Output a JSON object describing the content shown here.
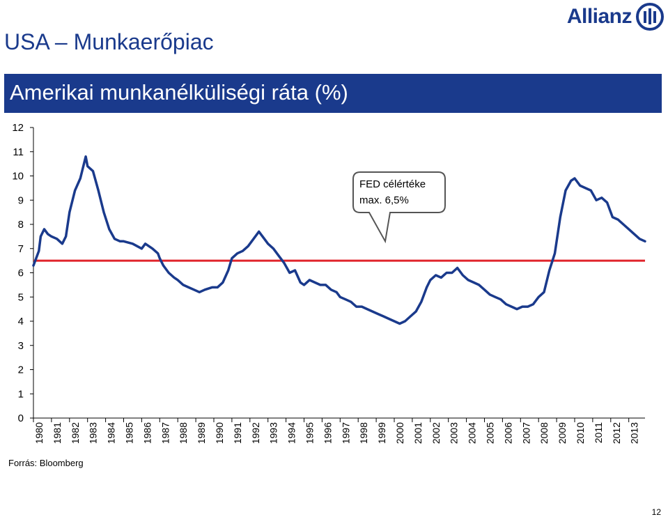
{
  "header": {
    "page_title": "USA – Munkaerőpiac",
    "logo_text": "Allianz",
    "banner_title": "Amerikai munkanélküliségi ráta (%)"
  },
  "footer": {
    "source": "Forrás: Bloomberg",
    "page_number": "12"
  },
  "colors": {
    "brand_blue": "#1a3a8c",
    "series_line": "#1a3a8c",
    "target_line": "#e0242b"
  },
  "chart_data": {
    "type": "line",
    "title": "Amerikai munkanélküliségi ráta (%)",
    "xlabel": "",
    "ylabel": "",
    "ylim": [
      0,
      12
    ],
    "yticks": [
      "0",
      "1",
      "2",
      "3",
      "4",
      "5",
      "6",
      "7",
      "8",
      "9",
      "10",
      "11",
      "12"
    ],
    "xlim": [
      1980,
      2013.9
    ],
    "xticks": [
      "1980",
      "1981",
      "1982",
      "1983",
      "1984",
      "1985",
      "1986",
      "1987",
      "1988",
      "1989",
      "1990",
      "1991",
      "1992",
      "1993",
      "1994",
      "1995",
      "1996",
      "1997",
      "1998",
      "1999",
      "2000",
      "2001",
      "2002",
      "2003",
      "2004",
      "2005",
      "2006",
      "2007",
      "2008",
      "2009",
      "2010",
      "2011",
      "2012",
      "2013"
    ],
    "grid": false,
    "legend": "none",
    "series": [
      {
        "x": [
          1980.0,
          1980.3,
          1980.4,
          1980.6,
          1980.8,
          1981.0,
          1981.3,
          1981.6,
          1981.8,
          1982.0,
          1982.3,
          1982.6,
          1982.9,
          1983.0,
          1983.3,
          1983.6,
          1983.9,
          1984.2,
          1984.5,
          1984.8,
          1985.0,
          1985.5,
          1986.0,
          1986.2,
          1986.6,
          1986.9,
          1987.0,
          1987.2,
          1987.5,
          1987.8,
          1988.0,
          1988.3,
          1988.6,
          1988.9,
          1989.2,
          1989.5,
          1989.9,
          1990.2,
          1990.5,
          1990.8,
          1991.0,
          1991.3,
          1991.6,
          1991.9,
          1992.2,
          1992.5,
          1992.8,
          1993.0,
          1993.3,
          1993.6,
          1993.9,
          1994.2,
          1994.5,
          1994.8,
          1995.0,
          1995.3,
          1995.6,
          1995.9,
          1996.2,
          1996.5,
          1996.8,
          1997.0,
          1997.3,
          1997.6,
          1997.9,
          1998.2,
          1998.5,
          1998.8,
          1999.1,
          1999.4,
          1999.7,
          2000.0,
          2000.3,
          2000.6,
          2000.9,
          2001.2,
          2001.5,
          2001.8,
          2002.0,
          2002.3,
          2002.6,
          2002.9,
          2003.2,
          2003.5,
          2003.8,
          2004.1,
          2004.4,
          2004.7,
          2005.0,
          2005.3,
          2005.6,
          2005.9,
          2006.2,
          2006.5,
          2006.8,
          2007.1,
          2007.4,
          2007.7,
          2008.0,
          2008.3,
          2008.6,
          2008.9,
          2009.2,
          2009.5,
          2009.8,
          2010.0,
          2010.3,
          2010.6,
          2010.9,
          2011.2,
          2011.5,
          2011.8,
          2012.1,
          2012.4,
          2012.7,
          2013.0,
          2013.3,
          2013.6,
          2013.9
        ],
        "values": [
          6.3,
          6.9,
          7.5,
          7.8,
          7.6,
          7.5,
          7.4,
          7.2,
          7.5,
          8.5,
          9.4,
          9.9,
          10.8,
          10.4,
          10.2,
          9.4,
          8.5,
          7.8,
          7.4,
          7.3,
          7.3,
          7.2,
          7.0,
          7.2,
          7.0,
          6.8,
          6.6,
          6.3,
          6.0,
          5.8,
          5.7,
          5.5,
          5.4,
          5.3,
          5.2,
          5.3,
          5.4,
          5.4,
          5.6,
          6.1,
          6.6,
          6.8,
          6.9,
          7.1,
          7.4,
          7.7,
          7.4,
          7.2,
          7.0,
          6.7,
          6.4,
          6.0,
          6.1,
          5.6,
          5.5,
          5.7,
          5.6,
          5.5,
          5.5,
          5.3,
          5.2,
          5.0,
          4.9,
          4.8,
          4.6,
          4.6,
          4.5,
          4.4,
          4.3,
          4.2,
          4.1,
          4.0,
          3.9,
          4.0,
          4.2,
          4.4,
          4.8,
          5.4,
          5.7,
          5.9,
          5.8,
          6.0,
          6.0,
          6.2,
          5.9,
          5.7,
          5.6,
          5.5,
          5.3,
          5.1,
          5.0,
          4.9,
          4.7,
          4.6,
          4.5,
          4.6,
          4.6,
          4.7,
          5.0,
          5.2,
          6.1,
          6.8,
          8.3,
          9.4,
          9.8,
          9.9,
          9.6,
          9.5,
          9.4,
          9.0,
          9.1,
          8.9,
          8.3,
          8.2,
          8.0,
          7.8,
          7.6,
          7.4,
          7.3
        ]
      }
    ],
    "reference_line": {
      "value": 6.5
    },
    "annotation": {
      "line1": "FED célértéke",
      "line2": "max. 6,5%",
      "target_x": 1999.5,
      "target_y": 7.3
    }
  }
}
